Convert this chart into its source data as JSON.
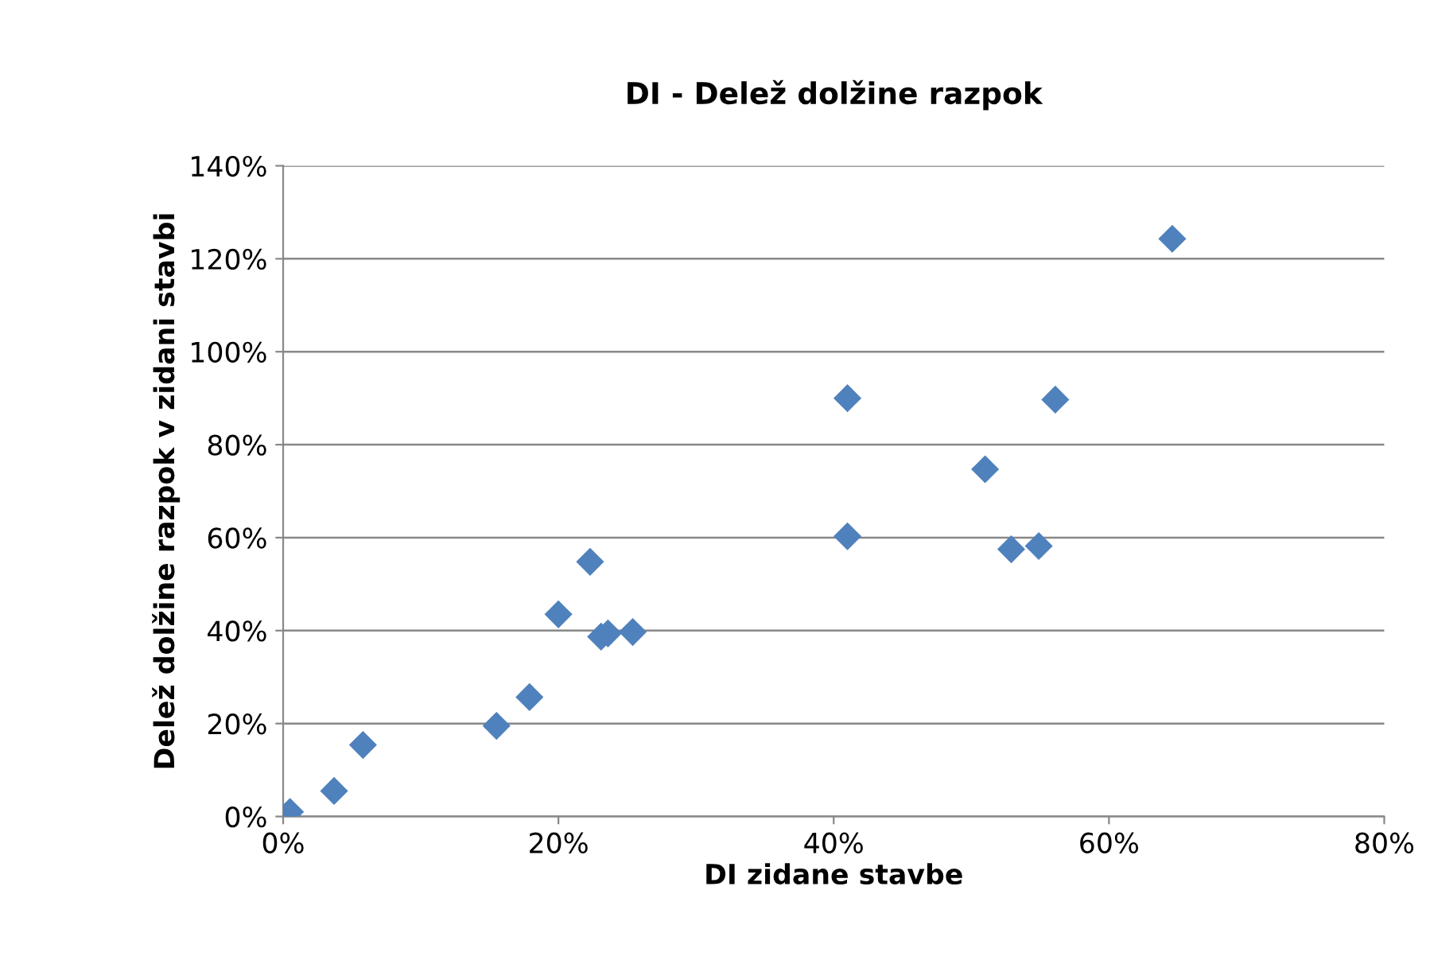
{
  "chart_data": {
    "type": "scatter",
    "title": "DI - Delež dolžine razpok",
    "xlabel": "DI zidane stavbe",
    "ylabel": "Delež dolžine razpok v zidani stavbi",
    "series": [
      {
        "color": "#4f81bd",
        "x": [
          0.5,
          3.7,
          5.8,
          15.5,
          17.9,
          20,
          22.3,
          23.1,
          23.6,
          25.4,
          41,
          41,
          51,
          52.9,
          54.9,
          56.1,
          64.6
        ],
        "values": [
          1,
          5.5,
          15.4,
          19.5,
          25.7,
          43.5,
          54.8,
          38.7,
          39.4,
          39.7,
          90,
          60.3,
          74.7,
          57.5,
          58.2,
          89.7,
          124.3
        ]
      }
    ],
    "xlim": [
      0,
      80
    ],
    "ylim": [
      0,
      140
    ],
    "xticks": [
      {
        "value": 0,
        "label": "0%"
      },
      {
        "value": 20,
        "label": "20%"
      },
      {
        "value": 40,
        "label": "40%"
      },
      {
        "value": 60,
        "label": "60%"
      },
      {
        "value": 80,
        "label": "80%"
      }
    ],
    "yticks": [
      {
        "value": 0,
        "label": "0%"
      },
      {
        "value": 20,
        "label": "20%"
      },
      {
        "value": 40,
        "label": "40%"
      },
      {
        "value": 60,
        "label": "60%"
      },
      {
        "value": 80,
        "label": "80%"
      },
      {
        "value": 100,
        "label": "100%"
      },
      {
        "value": 120,
        "label": "120%"
      },
      {
        "value": 140,
        "label": "140%"
      }
    ],
    "grid": "y",
    "marker": "diamond"
  }
}
